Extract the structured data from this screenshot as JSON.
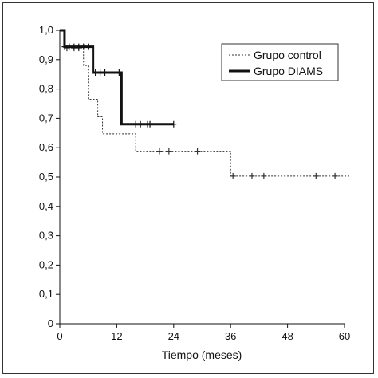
{
  "chart_data": {
    "type": "line",
    "title": "",
    "xlabel": "Tiempo (meses)",
    "ylabel": "",
    "xlim": [
      0,
      60
    ],
    "ylim": [
      0,
      1
    ],
    "xticks": [
      0,
      12,
      24,
      36,
      48,
      60
    ],
    "xtick_labels": [
      "0",
      "12",
      "24",
      "36",
      "48",
      "60"
    ],
    "yticks": [
      0,
      0.1,
      0.2,
      0.3,
      0.4,
      0.5,
      0.6,
      0.7,
      0.8,
      0.9,
      1.0
    ],
    "ytick_labels": [
      "0",
      "0,1",
      "0,2",
      "0,3",
      "0,4",
      "0,5",
      "0,6",
      "0,7",
      "0,8",
      "0,9",
      "1,0"
    ],
    "grid": false,
    "legend_position": "top-right",
    "series": [
      {
        "name": "Grupo control",
        "style": "dotted",
        "color": "#333333",
        "steps": [
          [
            0,
            1.0
          ],
          [
            1,
            0.94
          ],
          [
            5,
            0.88
          ],
          [
            6,
            0.765
          ],
          [
            8,
            0.705
          ],
          [
            9,
            0.647
          ],
          [
            16,
            0.588
          ],
          [
            35,
            0.588
          ],
          [
            36,
            0.503
          ],
          [
            61,
            0.503
          ]
        ],
        "censored": [
          [
            1.5,
            0.94
          ],
          [
            3,
            0.94
          ],
          [
            4,
            0.94
          ],
          [
            21,
            0.588
          ],
          [
            23,
            0.588
          ],
          [
            29,
            0.588
          ],
          [
            36.5,
            0.503
          ],
          [
            40.5,
            0.503
          ],
          [
            43,
            0.503
          ],
          [
            54,
            0.503
          ],
          [
            58,
            0.503
          ]
        ]
      },
      {
        "name": "Grupo DIAMS",
        "style": "solid",
        "color": "#111111",
        "steps": [
          [
            0,
            1.0
          ],
          [
            1,
            0.944
          ],
          [
            7,
            0.944
          ],
          [
            7,
            0.856
          ],
          [
            13,
            0.856
          ],
          [
            13,
            0.68
          ],
          [
            24,
            0.68
          ]
        ],
        "censored": [
          [
            1,
            0.944
          ],
          [
            2,
            0.944
          ],
          [
            3,
            0.944
          ],
          [
            4,
            0.944
          ],
          [
            5,
            0.944
          ],
          [
            6,
            0.944
          ],
          [
            7.5,
            0.856
          ],
          [
            8.5,
            0.856
          ],
          [
            9.5,
            0.856
          ],
          [
            12.5,
            0.856
          ],
          [
            16,
            0.68
          ],
          [
            17,
            0.68
          ],
          [
            18.5,
            0.68
          ],
          [
            19,
            0.68
          ],
          [
            24,
            0.68
          ]
        ]
      }
    ]
  }
}
